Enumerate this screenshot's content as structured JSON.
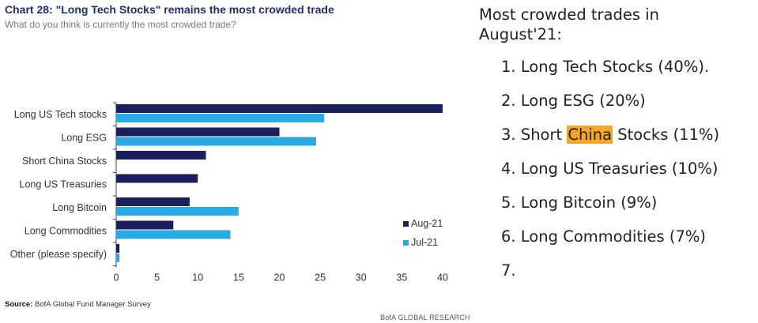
{
  "chart_data": {
    "type": "bar",
    "orientation": "horizontal",
    "title": "Chart 28: \"Long Tech Stocks\" remains the most crowded trade",
    "subtitle": "What do you think is currently the most crowded trade?",
    "categories": [
      "Long US Tech stocks",
      "Long ESG",
      "Short China Stocks",
      "Long US Treasuries",
      "Long Bitcoin",
      "Long Commodities",
      "Other (please specify)"
    ],
    "series": [
      {
        "name": "Aug-21",
        "color": "#1b1f5e",
        "values": [
          40,
          20,
          11,
          10,
          9,
          7,
          0.4
        ]
      },
      {
        "name": "Jul-21",
        "color": "#2aaae2",
        "values": [
          25.5,
          24.5,
          0,
          0,
          15,
          14,
          0.4
        ]
      }
    ],
    "xlim": [
      0,
      40
    ],
    "xticks": [
      0,
      5,
      10,
      15,
      20,
      25,
      30,
      35,
      40
    ],
    "legend_position": "bottom-right",
    "xlabel": "",
    "ylabel": ""
  },
  "source": {
    "label": "Source:",
    "text": "BofA Global Fund Manager Survey"
  },
  "research_label": "BofA GLOBAL RESEARCH",
  "panel": {
    "heading": "Most crowded trades in August'21:",
    "items": [
      {
        "num": "1.",
        "pre": "Long Tech Stocks (40%).",
        "hl": "",
        "post": ""
      },
      {
        "num": "2.",
        "pre": "Long ESG (20%)",
        "hl": "",
        "post": ""
      },
      {
        "num": "3.",
        "pre": "Short ",
        "hl": "China",
        "post": " Stocks (11%)"
      },
      {
        "num": "4.",
        "pre": "Long US Treasuries (10%)",
        "hl": "",
        "post": ""
      },
      {
        "num": "5.",
        "pre": "Long Bitcoin (9%)",
        "hl": "",
        "post": ""
      },
      {
        "num": "6.",
        "pre": "Long Commodities (7%)",
        "hl": "",
        "post": ""
      },
      {
        "num": "7.",
        "pre": "",
        "hl": "",
        "post": ""
      }
    ]
  }
}
